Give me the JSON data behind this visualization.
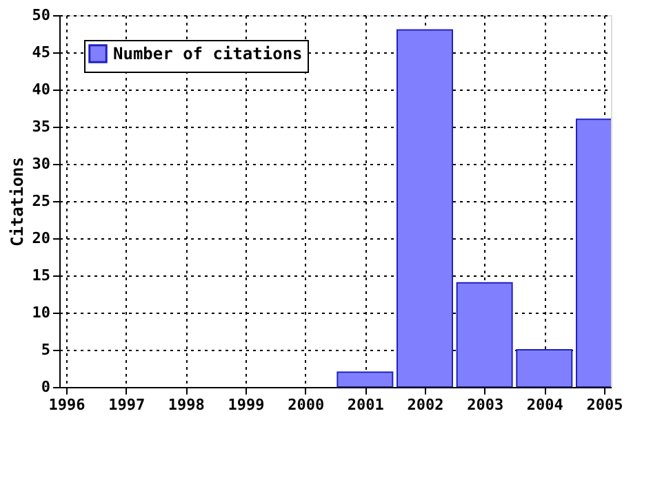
{
  "chart_data": {
    "type": "bar",
    "ylabel": "Citations",
    "x": [
      2001,
      2002,
      2003,
      2004,
      2005
    ],
    "series": [
      {
        "name": "Number of citations",
        "color": "#8080ff",
        "values": [
          2,
          48,
          14,
          5,
          36
        ]
      }
    ],
    "xlim": [
      1996,
      2005
    ],
    "xticks": [
      1996,
      1997,
      1998,
      1999,
      2000,
      2001,
      2002,
      2003,
      2004,
      2005
    ],
    "ylim": [
      0,
      50
    ],
    "yticks": [
      0,
      5,
      10,
      15,
      20,
      25,
      30,
      35,
      40,
      45,
      50
    ],
    "grid": true,
    "legend": "top left"
  }
}
